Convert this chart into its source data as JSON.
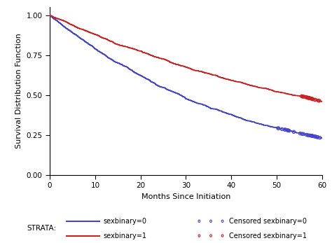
{
  "title": "",
  "xlabel": "Months Since Initiation",
  "ylabel": "Survival Distribution Function",
  "xlim": [
    0,
    60
  ],
  "ylim": [
    0.0,
    1.05
  ],
  "yticks": [
    0.0,
    0.25,
    0.5,
    0.75,
    1.0
  ],
  "xticks": [
    0,
    10,
    20,
    30,
    40,
    50,
    60
  ],
  "color_0": "#4444cc",
  "color_1": "#cc2222",
  "bg_color": "#ffffff",
  "strata0_label": "sexbinary=0",
  "strata1_label": "sexbinary=1",
  "censored0_label": "Censored sexbinary=0",
  "censored1_label": "Censored sexbinary=1",
  "strata_label": "STRATA:",
  "line_width": 1.2
}
